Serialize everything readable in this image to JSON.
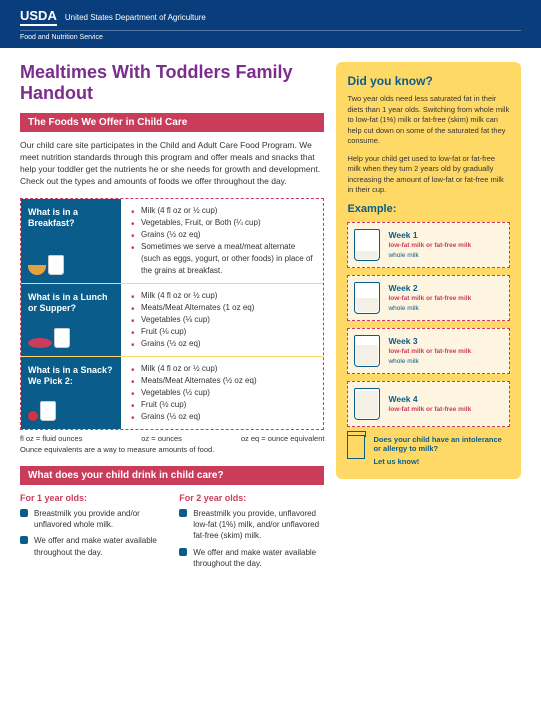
{
  "header": {
    "logo": "USDA",
    "dept": "United States Department of Agriculture",
    "sub": "Food and Nutrition Service"
  },
  "title": "Mealtimes With Toddlers Family Handout",
  "band1": "The Foods We Offer in Child Care",
  "intro": "Our child care site participates in the Child and Adult Care Food Program. We meet nutrition standards through this program and offer meals and snacks that help your toddler get the nutrients he or she needs for growth and development. Check out the types and amounts of foods we offer throughout the day.",
  "meals": [
    {
      "q": "What is in a Breakfast?",
      "items": [
        "Milk (4 fl oz or ½ cup)",
        "Vegetables, Fruit, or Both (¼ cup)",
        "Grains (½ oz eq)",
        "Sometimes we serve a meat/meat alternate (such as eggs, yogurt, or other foods) in place of the grains at breakfast."
      ]
    },
    {
      "q": "What is in a Lunch or Supper?",
      "items": [
        "Milk (4 fl oz or ½ cup)",
        "Meats/Meat Alternates (1 oz eq)",
        "Vegetables (⅛ cup)",
        "Fruit (⅛ cup)",
        "Grains (½ oz eq)"
      ]
    },
    {
      "q": "What is in a Snack? We Pick 2:",
      "items": [
        "Milk (4 fl oz or ½ cup)",
        "Meats/Meat Alternates (½ oz eq)",
        "Vegetables (½ cup)",
        "Fruit (½ cup)",
        "Grains (½ oz eq)"
      ]
    }
  ],
  "legend": {
    "a": "fl oz = fluid ounces",
    "b": "oz = ounces",
    "c": "oz eq = ounce equivalent"
  },
  "note": "Ounce equivalents are a way to measure amounts of food.",
  "band2": "What does your child drink in child care?",
  "drinks": [
    {
      "h": "For 1 year olds:",
      "items": [
        "Breastmilk you provide and/or unflavored whole milk.",
        "We offer and make water available throughout the day."
      ]
    },
    {
      "h": "For 2 year olds:",
      "items": [
        "Breastmilk you provide, unflavored low-fat (1%) milk, and/or unflavored fat-free (skim) milk.",
        "We offer and make water available throughout the day."
      ]
    }
  ],
  "sidebar": {
    "h": "Did you know?",
    "p1": "Two year olds need less saturated fat in their diets than 1 year olds. Switching from whole milk to low-fat (1%) milk or fat-free (skim) milk can help cut down on some of the saturated fat they consume.",
    "p2": "Help your child get used to low-fat or fat-free milk when they turn 2 years old by gradually increasing the amount of low-fat or fat-free milk in their cup.",
    "ex": "Example:",
    "weeks": [
      {
        "t": "Week 1",
        "lf": "low-fat milk or fat-free milk",
        "wm": "whole milk",
        "fill": 25
      },
      {
        "t": "Week 2",
        "lf": "low-fat milk or fat-free milk",
        "wm": "whole milk",
        "fill": 45
      },
      {
        "t": "Week 3",
        "lf": "low-fat milk or fat-free milk",
        "wm": "whole milk",
        "fill": 65
      },
      {
        "t": "Week 4",
        "lf": "low-fat milk or fat-free milk",
        "wm": "",
        "fill": 90
      }
    ],
    "allergy": {
      "q": "Does your child have an intolerance or allergy to milk?",
      "a": "Let us know!"
    }
  }
}
